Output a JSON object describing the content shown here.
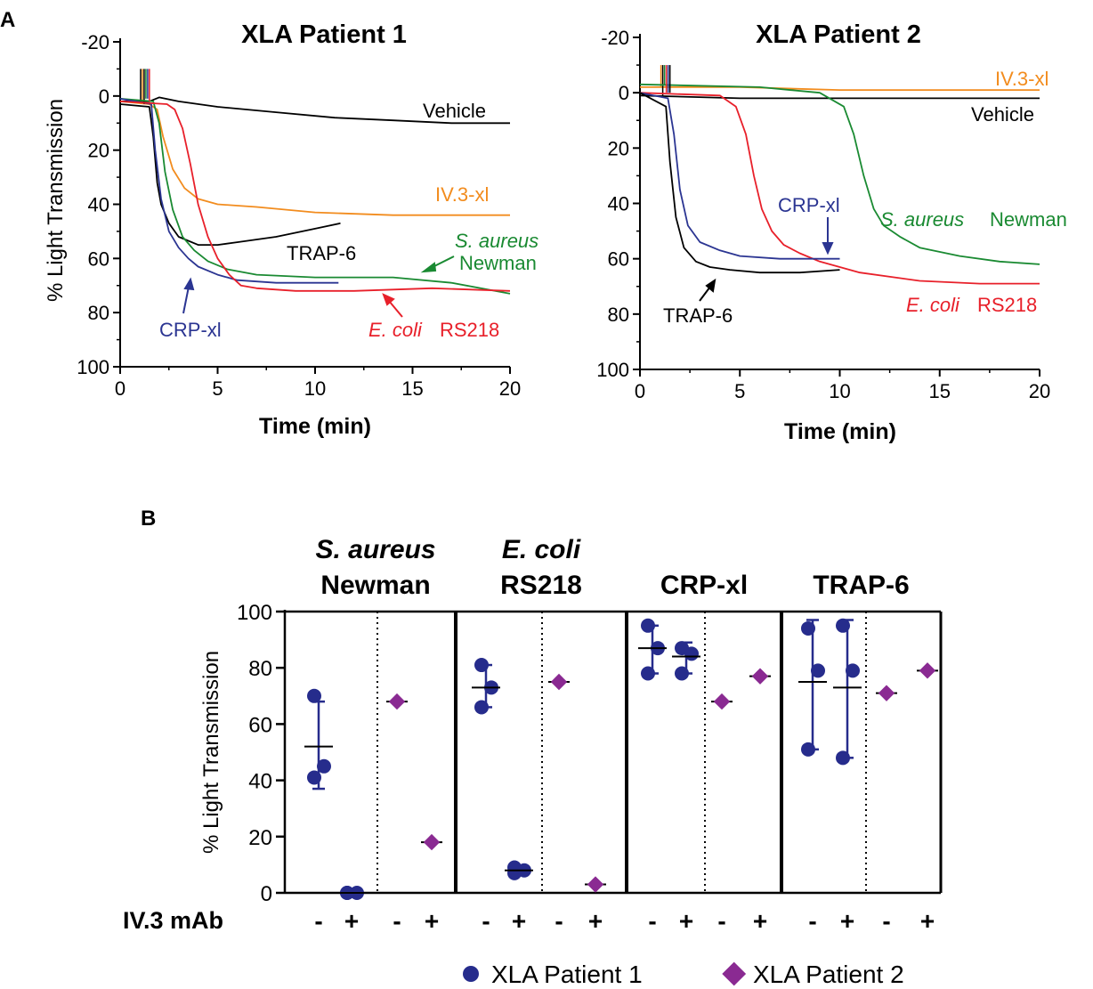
{
  "panel_labels": {
    "a": "A",
    "b": "B"
  },
  "colors": {
    "vehicle": "#000000",
    "iv3": "#f28c1e",
    "saureus": "#1a8a32",
    "ecoli": "#e8202a",
    "crp": "#2b3592",
    "trap": "#000000",
    "patient1": "#262c8c",
    "patient2": "#8a2a92"
  },
  "chart_data": [
    {
      "type": "line",
      "title": "XLA Patient 1",
      "xlabel": "Time (min)",
      "ylabel": "% Light Transmission",
      "xlim": [
        0,
        20
      ],
      "ylim": [
        -20,
        100
      ],
      "y_inverted": true,
      "x_ticks": [
        "0",
        "5",
        "10",
        "15",
        "20"
      ],
      "y_ticks": [
        "-20",
        "0",
        "20",
        "40",
        "60",
        "80",
        "100"
      ],
      "annotations": {
        "vehicle": "Vehicle",
        "iv3": "IV.3-xl",
        "trap": "TRAP-6",
        "saureus_1": "S. aureus",
        "saureus_2": "Newman",
        "crp": "CRP-xl",
        "ecoli_1": "E. coli",
        "ecoli_2": "RS218"
      },
      "series": [
        {
          "name": "Vehicle",
          "color_key": "vehicle",
          "x": [
            0,
            1.5,
            2,
            3,
            5,
            8,
            11,
            14,
            17,
            20
          ],
          "y": [
            2,
            2,
            0.5,
            2,
            4,
            6,
            8,
            9,
            10,
            10
          ]
        },
        {
          "name": "IV.3-xl",
          "color_key": "iv3",
          "x": [
            0,
            1.5,
            1.9,
            2.2,
            2.7,
            3.3,
            4,
            5,
            7,
            10,
            14,
            20
          ],
          "y": [
            2,
            3,
            5,
            15,
            27,
            34,
            38,
            40,
            41,
            43,
            44,
            44
          ]
        },
        {
          "name": "TRAP-6",
          "color_key": "trap",
          "x": [
            0,
            1.5,
            1.7,
            1.9,
            2.1,
            2.5,
            3,
            4,
            5,
            6,
            8,
            10,
            11.3
          ],
          "y": [
            3,
            4,
            15,
            32,
            40,
            47,
            52,
            55,
            55,
            54,
            52,
            49,
            47
          ]
        },
        {
          "name": "S. aureus Newman",
          "color_key": "saureus",
          "x": [
            0,
            1.7,
            2,
            2.3,
            2.7,
            3.2,
            3.8,
            4.5,
            5.5,
            7,
            10,
            14,
            17,
            20
          ],
          "y": [
            1,
            2,
            10,
            28,
            42,
            52,
            57,
            61,
            64,
            66,
            67,
            67,
            69,
            73
          ]
        },
        {
          "name": "CRP-xl",
          "color_key": "crp",
          "x": [
            0,
            1.6,
            1.8,
            2.1,
            2.5,
            3,
            3.5,
            4,
            5,
            6,
            8,
            11.2
          ],
          "y": [
            1,
            3,
            20,
            38,
            50,
            56,
            60,
            63,
            66,
            68,
            69,
            69
          ]
        },
        {
          "name": "E. coli RS218",
          "color_key": "ecoli",
          "x": [
            0,
            2.4,
            2.8,
            3.2,
            3.6,
            4,
            4.5,
            5,
            5.6,
            6.2,
            7,
            9,
            12,
            16,
            20
          ],
          "y": [
            2,
            3,
            5,
            12,
            25,
            40,
            52,
            60,
            66,
            70,
            71,
            72,
            72,
            71,
            72
          ]
        }
      ]
    },
    {
      "type": "line",
      "title": "XLA Patient 2",
      "xlabel": "Time (min)",
      "ylabel": "",
      "xlim": [
        0,
        20
      ],
      "ylim": [
        -20,
        100
      ],
      "y_inverted": true,
      "x_ticks": [
        "0",
        "5",
        "10",
        "15",
        "20"
      ],
      "y_ticks": [
        "-20",
        "0",
        "20",
        "40",
        "60",
        "80",
        "100"
      ],
      "annotations": {
        "iv3": "IV.3-xl",
        "vehicle": "Vehicle",
        "crp": "CRP-xl",
        "saureus_1": "S. aureus",
        "saureus_2": "Newman",
        "trap": "TRAP-6",
        "ecoli_1": "E. coli",
        "ecoli_2": "RS218"
      },
      "series": [
        {
          "name": "IV.3-xl",
          "color_key": "iv3",
          "x": [
            0,
            5,
            10,
            15,
            20
          ],
          "y": [
            -2,
            -2,
            -1,
            -1,
            -1
          ]
        },
        {
          "name": "Vehicle",
          "color_key": "vehicle",
          "x": [
            0,
            5,
            10,
            15,
            20
          ],
          "y": [
            1,
            2,
            2,
            2,
            2
          ]
        },
        {
          "name": "S. aureus Newman",
          "color_key": "saureus",
          "x": [
            0,
            6,
            9,
            10.2,
            10.7,
            11.2,
            11.7,
            12.2,
            13,
            14,
            16,
            18,
            20
          ],
          "y": [
            -3,
            -2,
            0,
            5,
            15,
            30,
            42,
            48,
            52,
            56,
            59,
            61,
            62
          ]
        },
        {
          "name": "E. coli RS218",
          "color_key": "ecoli",
          "x": [
            0,
            4,
            4.8,
            5.3,
            5.7,
            6.1,
            6.6,
            7.2,
            8,
            9,
            11,
            14,
            17,
            20
          ],
          "y": [
            0,
            1,
            5,
            15,
            30,
            42,
            50,
            55,
            58,
            61,
            65,
            68,
            69,
            69
          ]
        },
        {
          "name": "CRP-xl",
          "color_key": "crp",
          "x": [
            0,
            1.4,
            1.7,
            2,
            2.4,
            3,
            4,
            5,
            7,
            10
          ],
          "y": [
            0,
            2,
            15,
            35,
            48,
            54,
            57,
            59,
            60,
            60
          ]
        },
        {
          "name": "TRAP-6",
          "color_key": "trap",
          "x": [
            0,
            1.3,
            1.5,
            1.8,
            2.2,
            2.8,
            3.5,
            4.5,
            6,
            8,
            10
          ],
          "y": [
            0,
            5,
            25,
            45,
            56,
            61,
            63,
            64,
            65,
            65,
            64
          ]
        }
      ]
    },
    {
      "type": "scatter",
      "title": "",
      "ylabel": "% Light Transmission",
      "ylim": [
        0,
        100
      ],
      "y_ticks": [
        "0",
        "20",
        "40",
        "60",
        "80",
        "100"
      ],
      "row_label": "IV.3 mAb",
      "treatment_labels": [
        "-",
        "+",
        "-",
        "+"
      ],
      "groups": [
        {
          "label_1": "S. aureus",
          "label_2": "Newman",
          "label_italic": [
            true,
            false
          ],
          "patient1": [
            {
              "ivx": "-",
              "points": [
                70,
                45,
                41
              ],
              "mean": 52,
              "err": [
                37,
                68
              ]
            },
            {
              "ivx": "+",
              "points": [
                0,
                0,
                0
              ],
              "mean": 0,
              "err": [
                0,
                0
              ]
            }
          ],
          "patient2": [
            {
              "ivx": "-",
              "value": 68
            },
            {
              "ivx": "+",
              "value": 18
            }
          ]
        },
        {
          "label_1": "E. coli",
          "label_2": "RS218",
          "label_italic": [
            true,
            false
          ],
          "patient1": [
            {
              "ivx": "-",
              "points": [
                81,
                73,
                66
              ],
              "mean": 73,
              "err": [
                66,
                81
              ]
            },
            {
              "ivx": "+",
              "points": [
                9,
                8,
                7
              ],
              "mean": 8,
              "err": [
                7,
                9
              ]
            }
          ],
          "patient2": [
            {
              "ivx": "-",
              "value": 75
            },
            {
              "ivx": "+",
              "value": 3
            }
          ]
        },
        {
          "label_1": "",
          "label_2": "CRP-xl",
          "label_italic": [
            false,
            false
          ],
          "patient1": [
            {
              "ivx": "-",
              "points": [
                95,
                87,
                78
              ],
              "mean": 87,
              "err": [
                78,
                95
              ]
            },
            {
              "ivx": "+",
              "points": [
                87,
                85,
                78
              ],
              "mean": 84,
              "err": [
                78,
                89
              ]
            }
          ],
          "patient2": [
            {
              "ivx": "-",
              "value": 68
            },
            {
              "ivx": "+",
              "value": 77
            }
          ]
        },
        {
          "label_1": "",
          "label_2": "TRAP-6",
          "label_italic": [
            false,
            false
          ],
          "patient1": [
            {
              "ivx": "-",
              "points": [
                94,
                79,
                51
              ],
              "mean": 75,
              "err": [
                51,
                97
              ]
            },
            {
              "ivx": "+",
              "points": [
                95,
                79,
                48
              ],
              "mean": 73,
              "err": [
                48,
                97
              ]
            }
          ],
          "patient2": [
            {
              "ivx": "-",
              "value": 71
            },
            {
              "ivx": "+",
              "value": 79
            }
          ]
        }
      ],
      "legend": [
        {
          "label": "XLA Patient 1",
          "marker": "circle",
          "color_key": "patient1"
        },
        {
          "label": "XLA Patient 2",
          "marker": "diamond",
          "color_key": "patient2"
        }
      ]
    }
  ]
}
